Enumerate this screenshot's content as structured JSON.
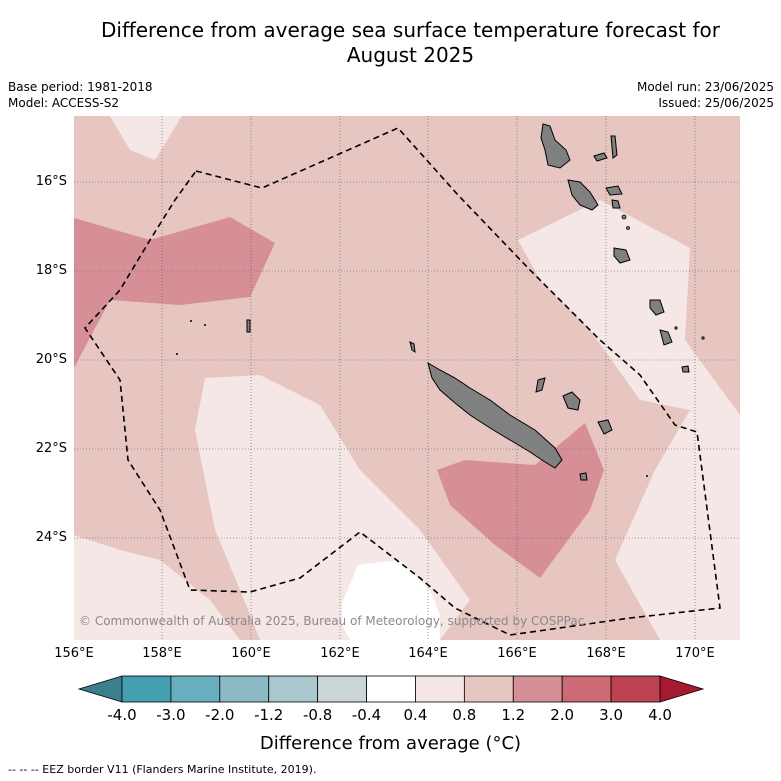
{
  "title_line1": "Difference from average sea surface temperature forecast for",
  "title_line2": "August 2025",
  "base_period": "Base period: 1981-2018",
  "model": "Model: ACCESS-S2",
  "model_run": "Model run: 23/06/2025",
  "issued": "Issued: 25/06/2025",
  "credit": "© Commonwealth of Australia 2025, Bureau of Meteorology, supported by COSPPac",
  "lat_labels": [
    "16°S",
    "18°S",
    "20°S",
    "22°S",
    "24°S"
  ],
  "lon_labels": [
    "156°E",
    "158°E",
    "160°E",
    "162°E",
    "164°E",
    "166°E",
    "168°E",
    "170°E"
  ],
  "colorbar": {
    "label": "Difference from average (°C)",
    "tick_labels": [
      "-4.0",
      "-3.0",
      "-2.0",
      "-1.2",
      "-0.8",
      "-0.4",
      "0.4",
      "0.8",
      "1.2",
      "2.0",
      "3.0",
      "4.0"
    ],
    "colors": {
      "under": "#3a7f8c",
      "bins": [
        "#44a0b0",
        "#68aebe",
        "#8bbac5",
        "#a9c7cc",
        "#cbd6d9",
        "#ffffff",
        "#f5e7e6",
        "#e7c5c1",
        "#d68f96",
        "#cc6a75",
        "#be4352"
      ],
      "over": "#a6192f"
    }
  },
  "footnote": "-- -- -- EEZ border V11 (Flanders Marine Institute, 2019).",
  "fills": {
    "base": "#e7c5c1",
    "light": "#f5e7e6",
    "white": "#ffffff",
    "mid": "#d68f96",
    "land": "#808080"
  }
}
